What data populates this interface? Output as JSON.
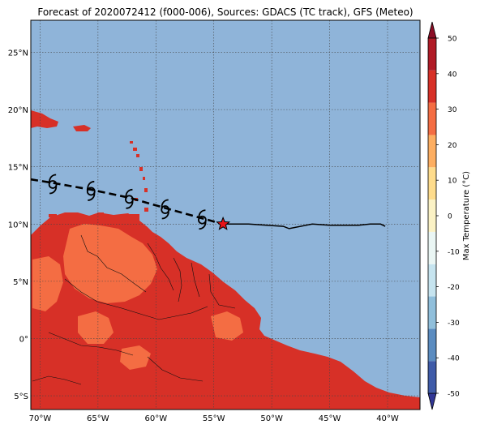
{
  "title": "Forecast of 2020072412 (f000-006), Sources: GDACS (TC track), GFS (Meteo)",
  "map": {
    "lon_range": [
      -70.8,
      -37.2
    ],
    "lat_range": [
      -6.2,
      27.8
    ],
    "lon_ticks": [
      {
        "value": -70,
        "label": "70°W"
      },
      {
        "value": -65,
        "label": "65°W"
      },
      {
        "value": -60,
        "label": "60°W"
      },
      {
        "value": -55,
        "label": "55°W"
      },
      {
        "value": -50,
        "label": "50°W"
      },
      {
        "value": -45,
        "label": "45°W"
      },
      {
        "value": -40,
        "label": "40°W"
      }
    ],
    "lat_ticks": [
      {
        "value": 25,
        "label": "25°N"
      },
      {
        "value": 20,
        "label": "20°N"
      },
      {
        "value": 15,
        "label": "15°N"
      },
      {
        "value": 10,
        "label": "10°N"
      },
      {
        "value": 5,
        "label": "5°N"
      },
      {
        "value": 0,
        "label": "0°"
      },
      {
        "value": -5,
        "label": "5°S"
      }
    ],
    "ocean_color": "#8fb4d9",
    "land_hot_color": "#d73027",
    "land_warm_color": "#f46d43",
    "track_past": [
      [
        -54.2,
        10.0
      ],
      [
        -52,
        10.0
      ],
      [
        -49,
        9.8
      ],
      [
        -48.5,
        9.6
      ],
      [
        -46.5,
        10.0
      ],
      [
        -45,
        9.9
      ],
      [
        -42.5,
        9.9
      ],
      [
        -41.5,
        10.0
      ],
      [
        -40.6,
        10.0
      ],
      [
        -40.2,
        9.8
      ]
    ],
    "track_forecast": [
      [
        -70.8,
        13.9
      ],
      [
        -68.9,
        13.6
      ],
      [
        -65.6,
        13.0
      ],
      [
        -62.3,
        12.3
      ],
      [
        -59.2,
        11.4
      ],
      [
        -56.0,
        10.5
      ],
      [
        -54.2,
        10.0
      ]
    ],
    "current_position": [
      -54.2,
      10.0
    ],
    "storm_symbols": [
      [
        -68.9,
        13.6
      ],
      [
        -65.6,
        13.0
      ],
      [
        -62.3,
        12.3
      ],
      [
        -59.2,
        11.4
      ],
      [
        -56.0,
        10.5
      ]
    ]
  },
  "colorbar": {
    "label": "Max Temperature (°C)",
    "ticks": [
      50,
      40,
      30,
      20,
      10,
      0,
      -10,
      -20,
      -30,
      -40,
      -50
    ],
    "colors": [
      "#313695",
      "#3f5ba8",
      "#5b8cc0",
      "#90bfdb",
      "#c6e4ef",
      "#eaf6f4",
      "#fbf2c5",
      "#fedc8c",
      "#fdae61",
      "#f46d43",
      "#d73027",
      "#b01a26",
      "#8b0d25"
    ]
  }
}
